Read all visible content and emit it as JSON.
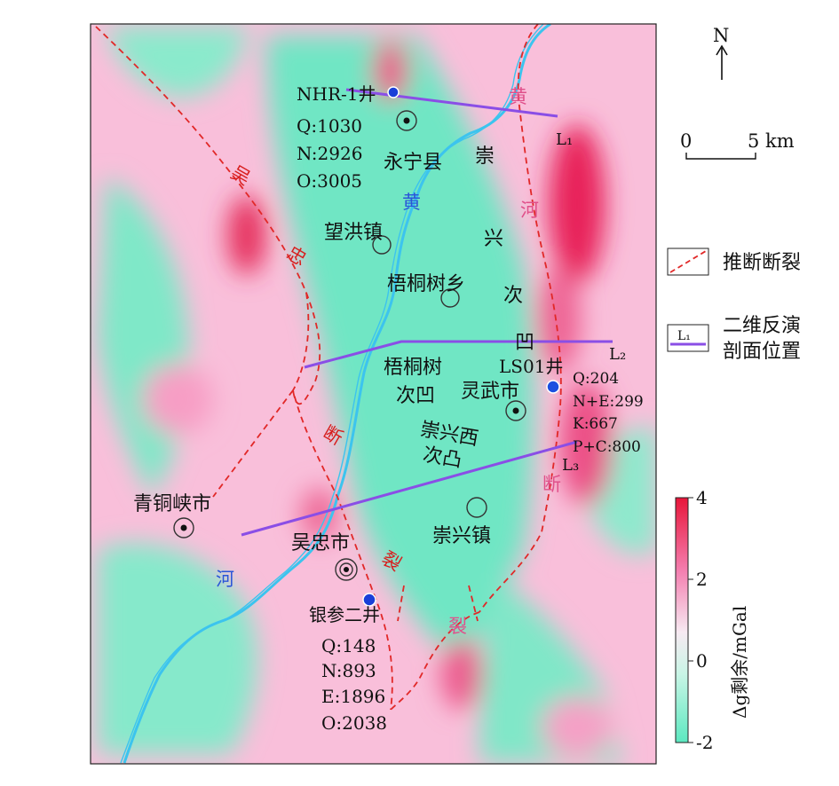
{
  "north": {
    "label": "N"
  },
  "scale": {
    "start": "0",
    "end": "5 km"
  },
  "legend": {
    "fault_label": "推断断裂",
    "profile_symbol": "L₁",
    "profile_label_line1": "二维反演",
    "profile_label_line2": "剖面位置"
  },
  "colorbar": {
    "title": "Δg剩余/mGal",
    "ticks": [
      "4",
      "2",
      "0",
      "-2"
    ],
    "min": -2,
    "max": 4,
    "colors": {
      "high": "#e8163a",
      "mid_high": "#f47fb0",
      "neutral": "#f7f0f4",
      "low": "#5ce8c0"
    }
  },
  "profiles": {
    "L1": "L₁",
    "L2": "L₂",
    "L3": "L₃"
  },
  "places": {
    "yongning": "永宁县",
    "wanghong": "望洪镇",
    "wutongshu_xiang": "梧桐树乡",
    "lingwu": "灵武市",
    "qingtongxia": "青铜峡市",
    "wuzhong": "吴忠市",
    "chongxing_zhen": "崇兴镇",
    "wutongshu_ao_1": "梧桐树",
    "wutongshu_ao_2": "次凹",
    "chongxingxi_tu_1": "崇兴西",
    "chongxingxi_tu_2": "次凸"
  },
  "wells": {
    "nhr1": {
      "name": "NHR-1井",
      "q": "Q:1030",
      "n": "N:2926",
      "o": "O:3005"
    },
    "ls01": {
      "name": "LS01井",
      "q": "Q:204",
      "ne": "N+E:299",
      "k": "K:667",
      "pc": "P+C:800"
    },
    "yincan2": {
      "name": "银参二井",
      "q": "Q:148",
      "n": "N:893",
      "e": "E:1896",
      "o": "O:2038"
    }
  },
  "fault_chars": {
    "wuzhong_fault": [
      "吴",
      "忠",
      "断",
      "裂"
    ],
    "huanghe_fault": [
      "黄",
      "河",
      "断",
      "裂"
    ]
  },
  "ao_chars": [
    "崇",
    "兴",
    "次",
    "凹"
  ],
  "river_chars": [
    "黄",
    "河"
  ]
}
